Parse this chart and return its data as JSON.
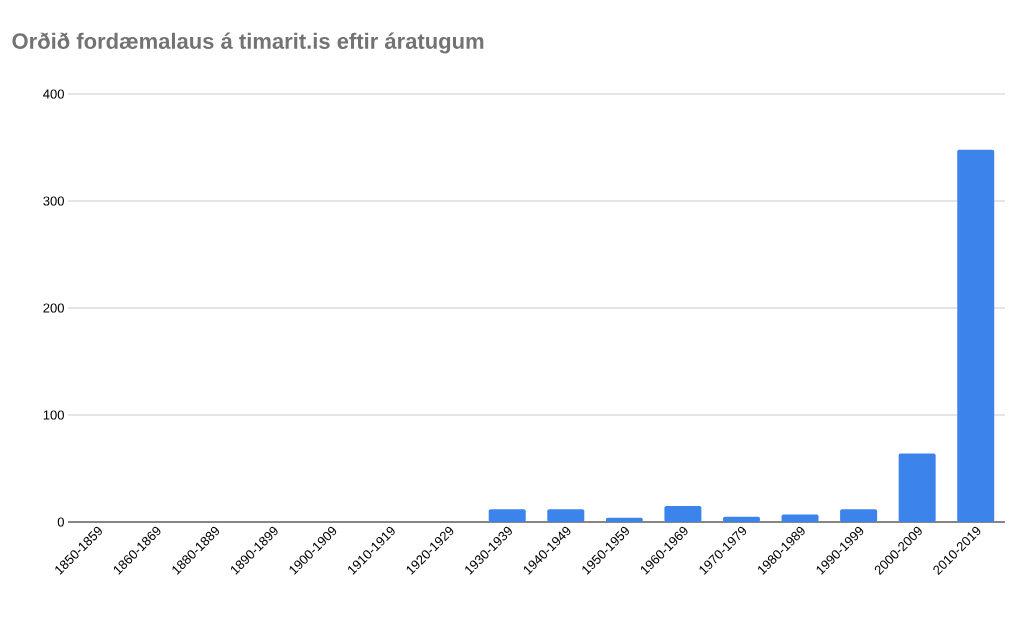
{
  "chart_data": {
    "type": "bar",
    "title": "Orðið fordæmalaus á timarit.is eftir áratugum",
    "categories": [
      "1850-1859",
      "1860-1869",
      "1880-1889",
      "1890-1899",
      "1900-1909",
      "1910-1919",
      "1920-1929",
      "1930-1939",
      "1940-1949",
      "1950-1959",
      "1960-1969",
      "1970-1979",
      "1980-1989",
      "1990-1999",
      "2000-2009",
      "2010-2019"
    ],
    "values": [
      0,
      0,
      0,
      0,
      0,
      0,
      0,
      12,
      12,
      4,
      15,
      5,
      7,
      12,
      64,
      348
    ],
    "color": "#3c84ec",
    "ylim": [
      0,
      400
    ],
    "yticks": [
      0,
      100,
      200,
      300,
      400
    ],
    "grid": "y"
  }
}
